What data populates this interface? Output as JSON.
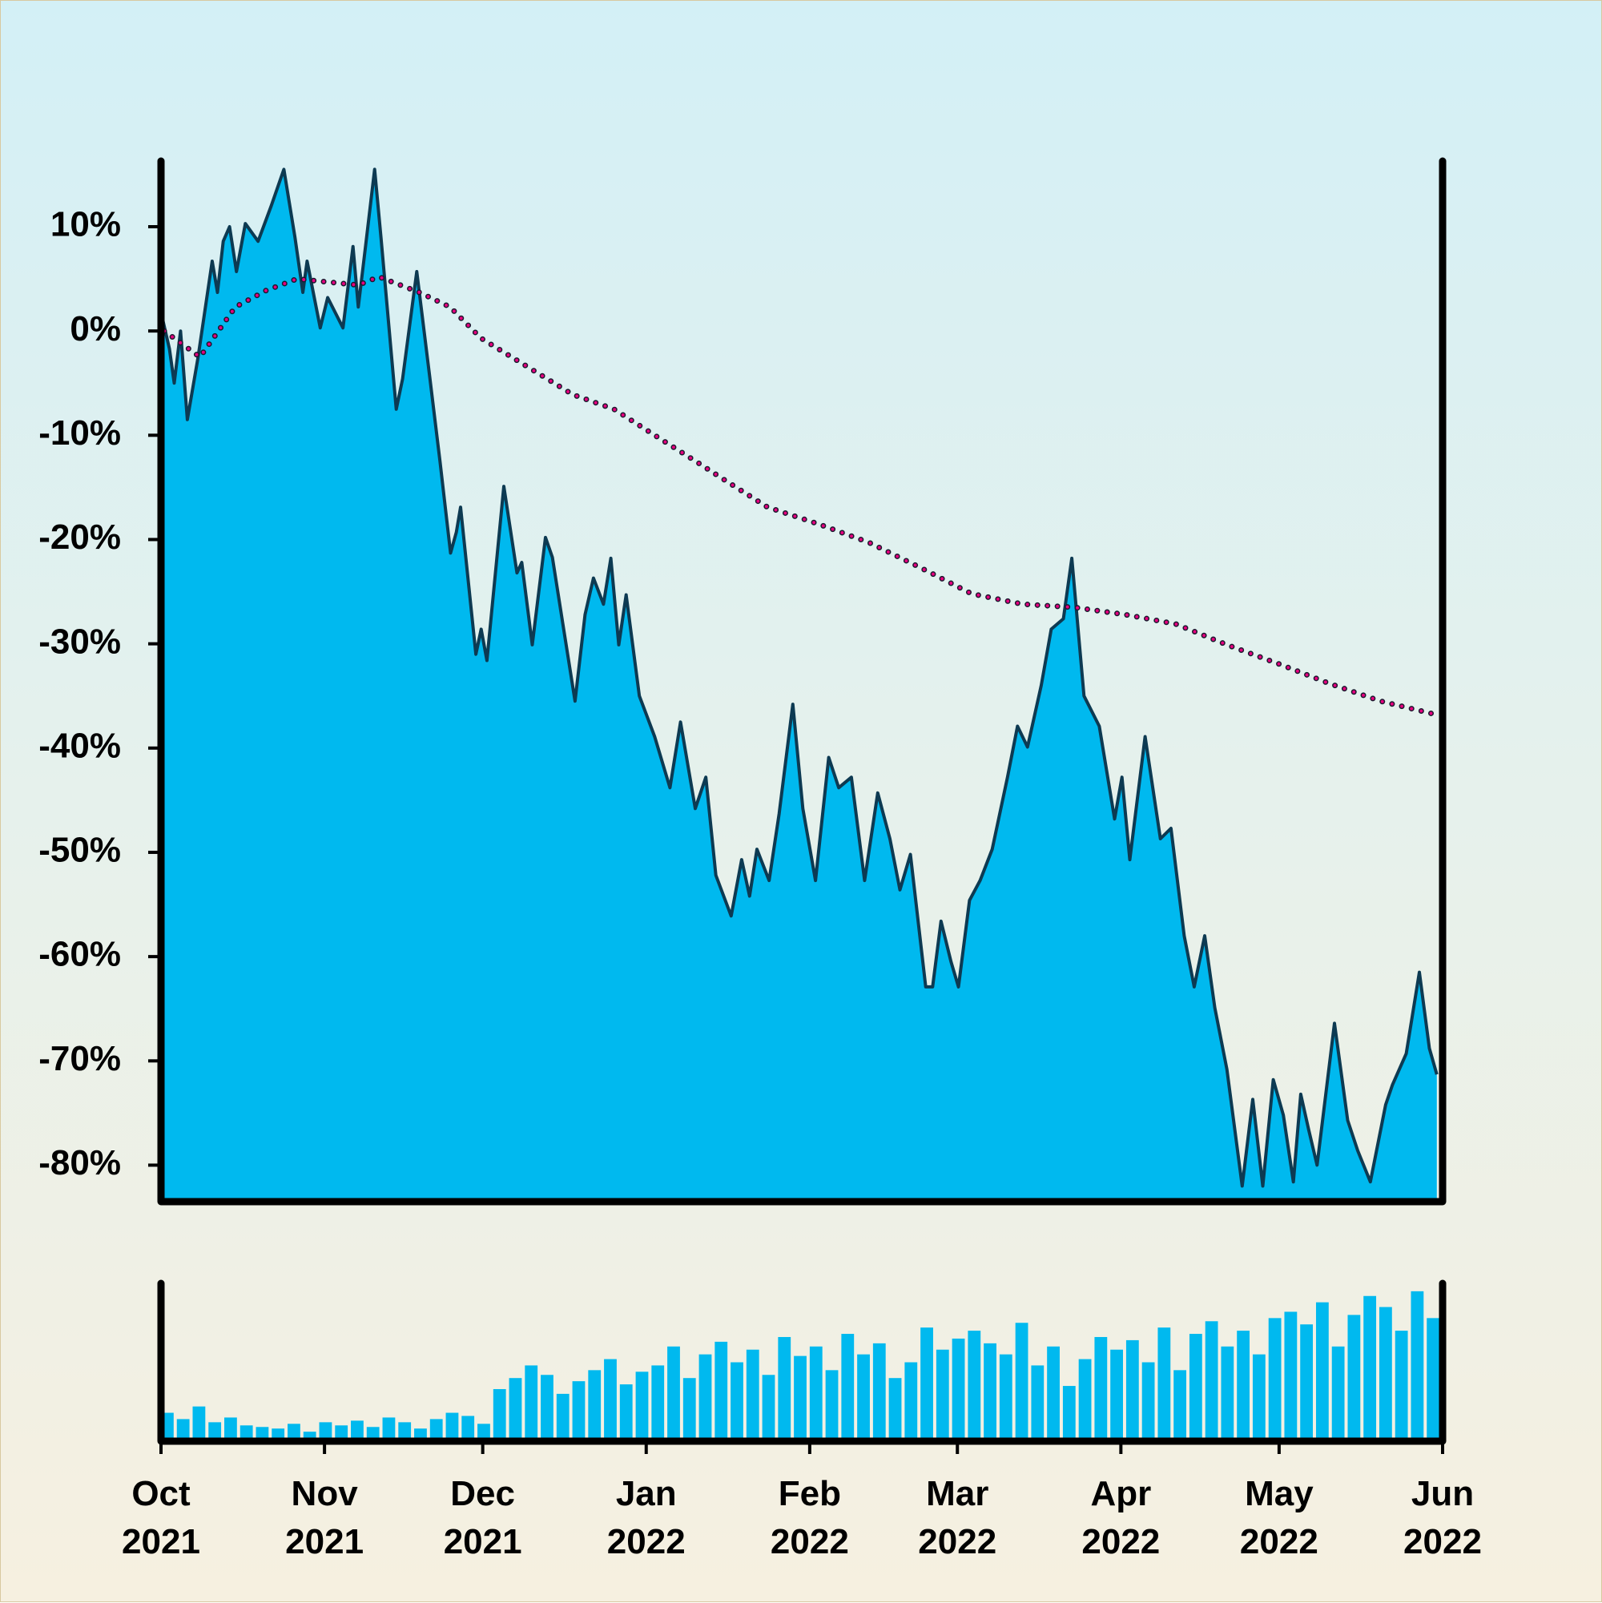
{
  "chart_data": [
    {
      "type": "area",
      "xlim": [
        0,
        243
      ],
      "ylim": [
        -83.5,
        16.3
      ],
      "yticks": [
        {
          "value": 10,
          "label": "10%"
        },
        {
          "value": 0,
          "label": "0%"
        },
        {
          "value": -10,
          "label": "-10%"
        },
        {
          "value": -20,
          "label": "-20%"
        },
        {
          "value": -30,
          "label": "-30%"
        },
        {
          "value": -40,
          "label": "-40%"
        },
        {
          "value": -50,
          "label": "-50%"
        },
        {
          "value": -60,
          "label": "-60%"
        },
        {
          "value": -70,
          "label": "-70%"
        },
        {
          "value": -80,
          "label": "-80%"
        }
      ],
      "series": [
        {
          "type": "area",
          "color": "#00b9ef",
          "line_color": "#0d3a52",
          "x": [
            0,
            1.6,
            2.5,
            3.7,
            5,
            7,
            9.7,
            10.7,
            11.8,
            13,
            14.3,
            16,
            18.4,
            20.9,
            23.3,
            25.4,
            26.9,
            27.7,
            30.2,
            31.6,
            34.5,
            36.4,
            37.4,
            38.9,
            40.5,
            41.7,
            44.6,
            45.8,
            48.5,
            51,
            52.9,
            54.9,
            56,
            56.8,
            59.7,
            60.7,
            61.8,
            65,
            67.5,
            68.4,
            70.4,
            72.9,
            74.2,
            76.2,
            78.5,
            80.4,
            82,
            83.9,
            85.3,
            86.8,
            88.2,
            90.7,
            93.6,
            96.5,
            98.5,
            101.3,
            103.3,
            105.2,
            108.1,
            110.1,
            111.6,
            113,
            115.3,
            117.2,
            119.8,
            121.7,
            124.1,
            126.6,
            128.5,
            130.9,
            133.4,
            135.9,
            138.2,
            140.1,
            142.1,
            145,
            146.3,
            147.9,
            149.8,
            151.2,
            153.3,
            155.3,
            157.6,
            160.5,
            162.4,
            164.3,
            166.9,
            168.8,
            171.1,
            172.7,
            175,
            177.9,
            180.8,
            182.2,
            183.7,
            186.6,
            189.5,
            191.5,
            194,
            195.9,
            197.9,
            199.8,
            202.1,
            205,
            207,
            208.9,
            210.9,
            212.8,
            214.7,
            216.1,
            217.6,
            219.2,
            222.5,
            225,
            226.9,
            229.3,
            232.2,
            233.5,
            236.1,
            238.6,
            240.5,
            241.9
          ],
          "values": [
            1.8,
            -1.7,
            -5,
            0,
            -8.5,
            -2.6,
            6.7,
            3.7,
            8.6,
            10,
            5.7,
            10.3,
            8.6,
            12,
            15.5,
            9,
            3.7,
            6.7,
            0.3,
            3.2,
            0.3,
            8.1,
            2.3,
            8.6,
            15.5,
            9,
            -7.5,
            -4.6,
            5.7,
            -4.6,
            -12.5,
            -21.3,
            -19.3,
            -16.9,
            -31,
            -28.6,
            -31.6,
            -14.9,
            -23.2,
            -22.2,
            -30.1,
            -19.8,
            -21.7,
            -28.1,
            -35.5,
            -27.2,
            -23.7,
            -26.2,
            -21.8,
            -30.1,
            -25.3,
            -35,
            -38.9,
            -43.8,
            -37.5,
            -45.8,
            -42.8,
            -52.2,
            -56.1,
            -50.7,
            -54.2,
            -49.7,
            -52.7,
            -46.3,
            -35.8,
            -45.8,
            -52.7,
            -40.9,
            -43.8,
            -42.8,
            -52.7,
            -44.3,
            -48.7,
            -53.6,
            -50.2,
            -62.9,
            -62.9,
            -56.6,
            -60.5,
            -62.9,
            -54.6,
            -52.7,
            -49.7,
            -42.8,
            -37.9,
            -39.9,
            -34,
            -28.6,
            -27.6,
            -21.8,
            -35,
            -37.9,
            -46.8,
            -42.8,
            -50.7,
            -38.9,
            -48.7,
            -47.7,
            -58,
            -62.9,
            -58,
            -64.9,
            -70.8,
            -82,
            -73.7,
            -82,
            -71.8,
            -75.2,
            -81.6,
            -73.2,
            -76.6,
            -80,
            -66.4,
            -75.7,
            -78.6,
            -81.6,
            -74.2,
            -72.3,
            -69.3,
            -61.5,
            -68.8,
            -71.3
          ]
        },
        {
          "type": "line",
          "style": "dotted",
          "color": "#e6007e",
          "x": [
            0.6,
            7.4,
            14.1,
            20,
            25.8,
            31.6,
            37.4,
            41.3,
            49,
            54.8,
            60.7,
            68.4,
            78.1,
            85.9,
            93.6,
            101.4,
            107.2,
            115,
            124.6,
            134.3,
            144,
            153.7,
            163.4,
            173.1,
            182.8,
            192.4,
            202.1,
            211.8,
            221.5,
            231.2,
            241.9
          ],
          "values": [
            0,
            -2.5,
            2.3,
            3.9,
            5,
            4.7,
            4.4,
            5.2,
            3.7,
            2.3,
            -0.7,
            -3.1,
            -6.1,
            -7.5,
            -10,
            -12.5,
            -14.4,
            -16.9,
            -18.5,
            -20.3,
            -22.7,
            -25.2,
            -26.2,
            -26.5,
            -27.2,
            -28.1,
            -30.1,
            -31.9,
            -33.8,
            -35.5,
            -36.8
          ]
        }
      ]
    },
    {
      "type": "bar",
      "color": "#00b9ef",
      "xlim": [
        0,
        243
      ],
      "ylim": [
        0,
        100
      ],
      "xticks": [
        {
          "value": 0,
          "label": "Oct\n2021"
        },
        {
          "value": 31,
          "label": "Nov\n2021"
        },
        {
          "value": 61,
          "label": "Dec\n2021"
        },
        {
          "value": 92,
          "label": "Jan\n2022"
        },
        {
          "value": 123,
          "label": "Feb\n2022"
        },
        {
          "value": 151,
          "label": "Mar\n2022"
        },
        {
          "value": 182,
          "label": "Apr\n2022"
        },
        {
          "value": 212,
          "label": "May\n2022"
        },
        {
          "value": 243,
          "label": "Jun\n2022"
        }
      ],
      "x": [
        0,
        3,
        6,
        9,
        12,
        15,
        18,
        21,
        24,
        27,
        30,
        33,
        36,
        39,
        42,
        45,
        48,
        51,
        54,
        57,
        60,
        63,
        66,
        69,
        72,
        75,
        78,
        81,
        84,
        87,
        90,
        93,
        96,
        99,
        102,
        105,
        108,
        111,
        114,
        117,
        120,
        123,
        126,
        129,
        132,
        135,
        138,
        141,
        144,
        147,
        150,
        153,
        156,
        159,
        162,
        165,
        168,
        171,
        174,
        177,
        180,
        183,
        186,
        189,
        192,
        195,
        198,
        201,
        204,
        207,
        210,
        213,
        216,
        219,
        222,
        225,
        228,
        231,
        234,
        237,
        240
      ],
      "values": [
        18,
        14,
        22,
        12,
        15,
        10,
        9,
        8,
        11,
        6,
        12,
        10,
        13,
        9,
        15,
        12,
        8,
        14,
        18,
        16,
        11,
        33,
        40,
        48,
        42,
        30,
        38,
        45,
        52,
        36,
        44,
        48,
        60,
        40,
        55,
        63,
        50,
        58,
        42,
        66,
        54,
        60,
        45,
        68,
        55,
        62,
        40,
        50,
        72,
        58,
        65,
        70,
        62,
        55,
        75,
        48,
        60,
        35,
        52,
        66,
        58,
        64,
        50,
        72,
        45,
        68,
        76,
        60,
        70,
        55,
        78,
        82,
        74,
        88,
        60,
        80,
        92,
        85,
        70,
        95,
        78
      ]
    }
  ]
}
